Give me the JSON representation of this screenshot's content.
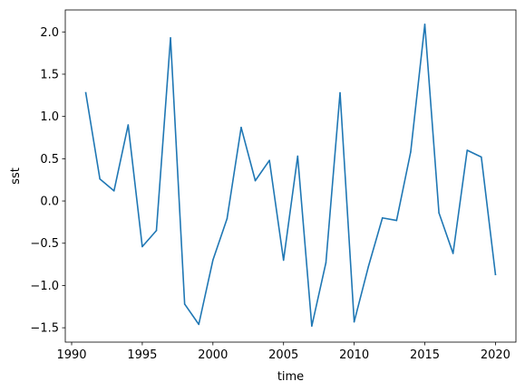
{
  "chart_data": {
    "type": "line",
    "title": "",
    "xlabel": "time",
    "ylabel": "sst",
    "xlim": [
      1989.55,
      2021.45
    ],
    "ylim": [
      -1.67,
      2.26
    ],
    "xticks": [
      1990,
      1995,
      2000,
      2005,
      2010,
      2015,
      2020
    ],
    "yticks": [
      -1.5,
      -1.0,
      -0.5,
      0.0,
      0.5,
      1.0,
      1.5,
      2.0
    ],
    "xtick_labels": [
      "1990",
      "1995",
      "2000",
      "2005",
      "2010",
      "2015",
      "2020"
    ],
    "ytick_labels": [
      "−1.5",
      "−1.0",
      "−0.5",
      "0.0",
      "0.5",
      "1.0",
      "1.5",
      "2.0"
    ],
    "grid": false,
    "line_color": "#1f77b4",
    "series": [
      {
        "x": [
          1991,
          1992,
          1993,
          1994,
          1995,
          1996,
          1997,
          1998,
          1999,
          2000,
          2001,
          2002,
          2003,
          2004,
          2005,
          2006,
          2007,
          2008,
          2009,
          2010,
          2011,
          2012,
          2013,
          2014,
          2015,
          2016,
          2017,
          2018,
          2019,
          2020
        ],
        "values": [
          1.28,
          0.26,
          0.12,
          0.9,
          -0.54,
          -0.35,
          1.93,
          -1.22,
          -1.46,
          -0.7,
          -0.21,
          0.87,
          0.24,
          0.48,
          -0.7,
          0.53,
          -1.48,
          -0.73,
          1.28,
          -1.43,
          -0.78,
          -0.2,
          -0.23,
          0.58,
          2.09,
          -0.14,
          -0.62,
          0.6,
          0.52,
          -0.87
        ]
      }
    ]
  }
}
